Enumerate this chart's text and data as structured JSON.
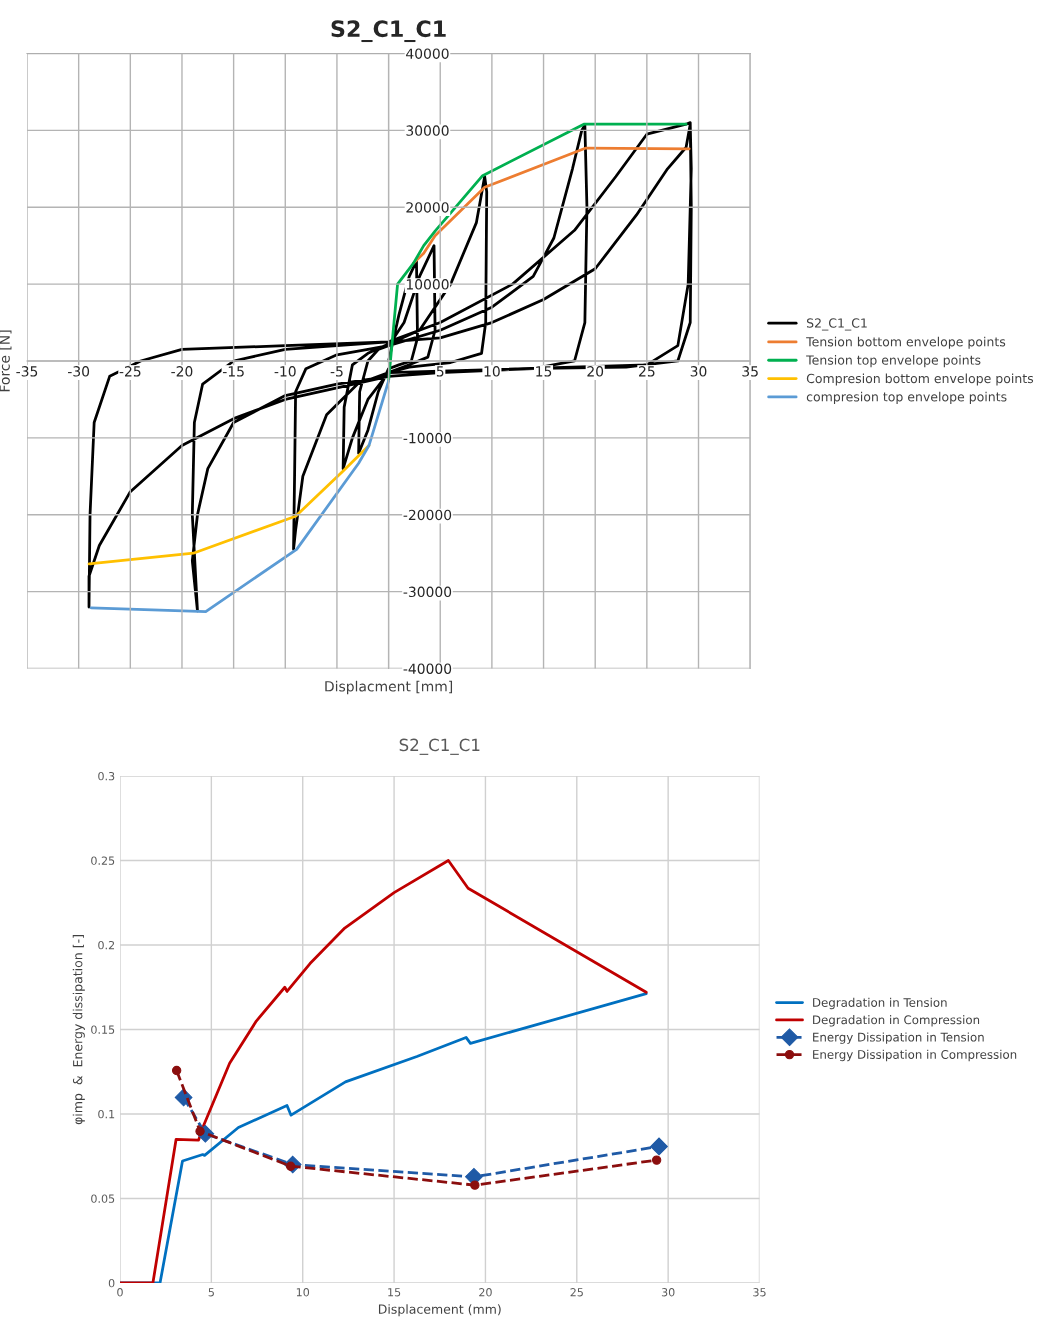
{
  "chart_data": [
    {
      "type": "line",
      "title": "S2_C1_C1",
      "xlabel": "Displacment [mm]",
      "ylabel": "Force [N]",
      "xlim": [
        -35,
        35
      ],
      "ylim": [
        -40000,
        40000
      ],
      "xticks": [
        -35,
        -30,
        -25,
        -20,
        -15,
        -10,
        -5,
        {
          "value": 0,
          "label": null
        },
        5,
        10,
        15,
        20,
        25,
        30,
        35
      ],
      "yticks": [
        -40000,
        -30000,
        -20000,
        -10000,
        {
          "value": 0,
          "label": null
        },
        10000,
        20000,
        30000,
        40000
      ],
      "grid": true,
      "legend": "right",
      "series": [
        {
          "name": "S2_C1_C1",
          "color": "#000000",
          "x": [
            0,
            1,
            2,
            2.7,
            2.8,
            2.2,
            1,
            0,
            -1,
            -2,
            -2.9,
            -2.8,
            -2,
            -1,
            0,
            1.5,
            3,
            4.4,
            4.5,
            3.8,
            2,
            0,
            -2,
            -3.5,
            -4.4,
            -4.3,
            -3.5,
            -2,
            0,
            3,
            6,
            8.5,
            9.3,
            9.5,
            9.4,
            9,
            6,
            2,
            0,
            -3,
            -6,
            -8.3,
            -9,
            -9.2,
            -9.1,
            -9,
            -8,
            -5,
            -2,
            0,
            5,
            10,
            14,
            16,
            17.8,
            18.7,
            19,
            19.2,
            19,
            18,
            14,
            5,
            0,
            -5,
            -10,
            -15,
            -17.5,
            -18.5,
            -19,
            -18.5,
            -19,
            -18.8,
            -18,
            -15,
            -10,
            -5,
            0,
            5,
            10,
            15,
            20,
            24,
            27,
            28.8,
            29.2,
            29.3,
            29,
            28,
            25,
            13,
            5,
            0,
            -5,
            -10,
            -15,
            -20,
            -25,
            -28,
            -29,
            -29,
            -28.9,
            -28.5,
            -27,
            -24,
            -20,
            -10,
            0,
            5,
            12,
            18,
            22,
            25,
            28.8,
            29.2,
            29.3,
            29.2,
            28,
            23,
            13,
            0
          ],
          "values": [
            0,
            6000,
            11000,
            13000,
            3000,
            0,
            -500,
            -1000,
            -4000,
            -9000,
            -12000,
            -4000,
            0,
            1500,
            2000,
            5000,
            11000,
            15000,
            4000,
            500,
            -500,
            -1500,
            -5000,
            -10000,
            -14000,
            -6000,
            -500,
            1000,
            2200,
            4000,
            10000,
            18000,
            24000,
            22000,
            5000,
            1000,
            -200,
            -800,
            -1500,
            -3000,
            -7000,
            -15000,
            -22000,
            -24500,
            -15000,
            -4000,
            -1000,
            800,
            1500,
            2000,
            4000,
            7000,
            11000,
            16000,
            25000,
            30000,
            30700,
            20000,
            5000,
            0,
            -1000,
            -1500,
            -2000,
            -3000,
            -4500,
            -8000,
            -14000,
            -20000,
            -26000,
            -32500,
            -20000,
            -8000,
            -3000,
            0,
            1500,
            2000,
            2500,
            3000,
            5000,
            8000,
            12000,
            19000,
            25000,
            27800,
            30800,
            25000,
            10000,
            2000,
            -500,
            -1000,
            -1500,
            -2000,
            -3500,
            -5000,
            -7500,
            -11000,
            -17000,
            -24000,
            -28000,
            -32000,
            -20000,
            -8000,
            -2000,
            0,
            1500,
            2000,
            2500,
            5000,
            10000,
            17000,
            24000,
            29500,
            30800,
            31000,
            20000,
            5000,
            0,
            -800,
            -1000,
            -1500
          ]
        },
        {
          "name": "Tension bottom envelope points",
          "color": "#ed7d31",
          "x": [
            2.4,
            3.4,
            4.5,
            9.3,
            19.1,
            29.1
          ],
          "values": [
            12700,
            14000,
            16300,
            22600,
            27700,
            27600
          ]
        },
        {
          "name": "Tension top envelope points",
          "color": "#00b050",
          "x": [
            0,
            0.87,
            2.4,
            3.4,
            4.5,
            9.1,
            18.9,
            28.8
          ],
          "values": [
            -2600,
            10000,
            12700,
            15000,
            16900,
            24100,
            30800,
            30800
          ]
        },
        {
          "name": "Compresion bottom envelope points",
          "color": "#ffc000",
          "x": [
            -1.9,
            -4.4,
            -9.0,
            -18.9,
            -29.0
          ],
          "values": [
            -11000,
            -14300,
            -20200,
            -25000,
            -26400
          ]
        },
        {
          "name": "compresion top envelope points",
          "color": "#5b9bd5",
          "x": [
            0,
            -1.9,
            -2.9,
            -8.9,
            -17.7,
            -28.8
          ],
          "values": [
            -2600,
            -11000,
            -13300,
            -24500,
            -32600,
            -32100
          ]
        }
      ]
    },
    {
      "type": "line",
      "title": "S2_C1_C1",
      "xlabel": "Displacement (mm)",
      "ylabel": "φimp  &  Energy dissipation [-]",
      "xlim": [
        0,
        35
      ],
      "ylim": [
        0,
        0.3
      ],
      "xticks": [
        0,
        5,
        10,
        15,
        20,
        25,
        30,
        35
      ],
      "yticks": [
        0,
        0.05,
        0.1,
        0.15,
        0.2,
        0.25,
        0.3
      ],
      "grid": true,
      "legend": "right",
      "series": [
        {
          "name": "Degradation in Tension",
          "color": "#0070c0",
          "x": [
            0,
            2.19,
            3.42,
            4.53,
            4.63,
            6.48,
            9.14,
            9.36,
            12.34,
            16.25,
            18.94,
            19.18,
            28.8
          ],
          "values": [
            0,
            0,
            0.0722,
            0.076,
            0.0755,
            0.092,
            0.105,
            0.0993,
            0.119,
            0.134,
            0.1453,
            0.1418,
            0.1712
          ]
        },
        {
          "name": "Degradation in Compression",
          "color": "#c00000",
          "x": [
            0,
            1.8,
            3.07,
            4.3,
            4.53,
            6.0,
            7.46,
            9.02,
            9.14,
            10.4,
            12.3,
            15.0,
            17.97,
            19.05,
            28.8
          ],
          "values": [
            0,
            0,
            0.085,
            0.0845,
            0.092,
            0.13,
            0.155,
            0.175,
            0.1725,
            0.189,
            0.21,
            0.231,
            0.25,
            0.2336,
            0.172
          ]
        },
        {
          "name": "Energy Dissipation in Tension",
          "color": "#1f5aa6",
          "marker": "diamond",
          "line_style": "dashed",
          "x": [
            3.48,
            4.67,
            9.45,
            19.37,
            29.5
          ],
          "values": [
            0.1098,
            0.0883,
            0.0701,
            0.0628,
            0.0808
          ]
        },
        {
          "name": "Energy Dissipation in Compression",
          "color": "#8b0e0e",
          "marker": "circle",
          "line_style": "dashed",
          "x": [
            3.1,
            4.38,
            9.34,
            19.42,
            29.37
          ],
          "values": [
            0.1257,
            0.0898,
            0.0691,
            0.0579,
            0.0727
          ]
        }
      ]
    }
  ]
}
